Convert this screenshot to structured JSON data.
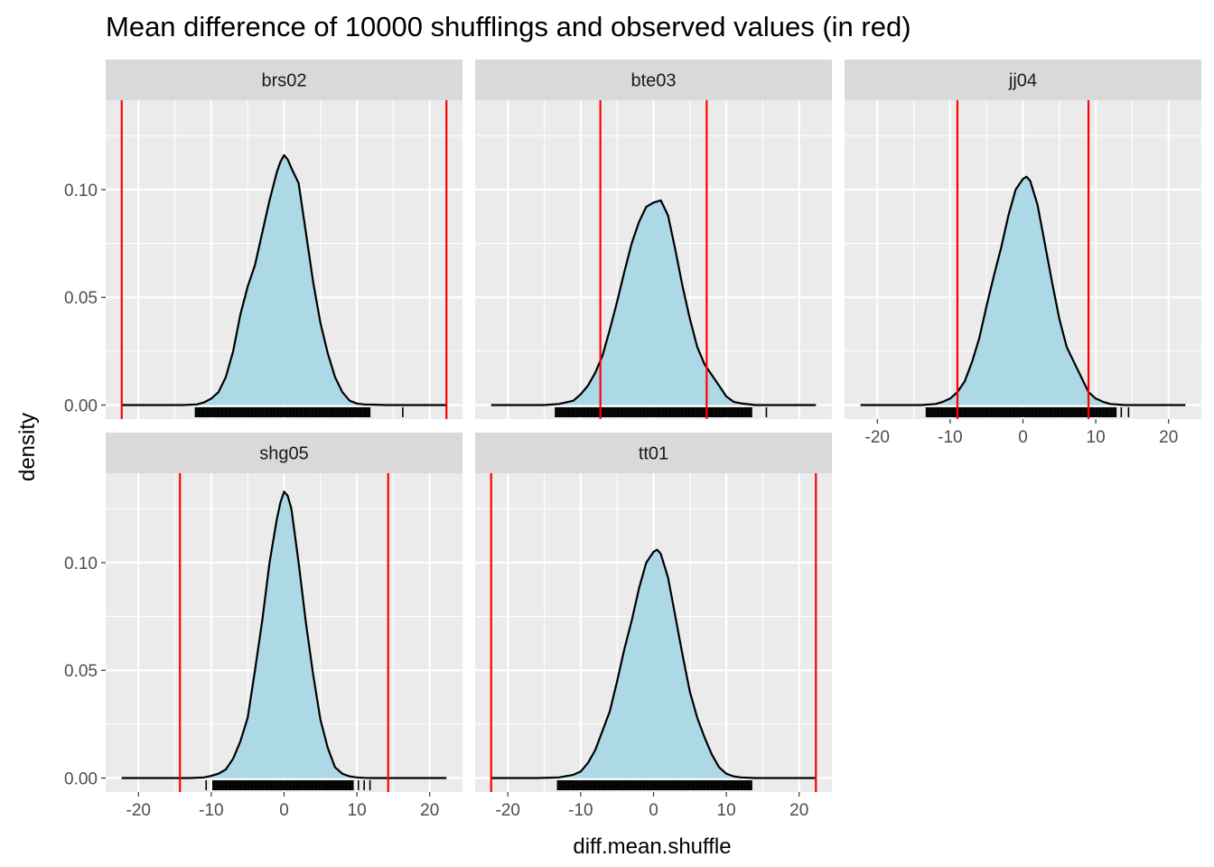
{
  "chart_data": {
    "type": "facet-density",
    "title": "Mean difference of 10000 shufflings and observed values (in red)",
    "xlabel": "diff.mean.shuffle",
    "ylabel": "density",
    "xlim": [
      -24.5,
      24.5
    ],
    "ylim": [
      -0.0065,
      0.1415
    ],
    "x_ticks": [
      -20,
      -10,
      0,
      10,
      20
    ],
    "x_tick_labels": [
      "-20",
      "-10",
      "0",
      "10",
      "20"
    ],
    "y_ticks": [
      0.0,
      0.05,
      0.1
    ],
    "y_tick_labels": [
      "0.00",
      "0.05",
      "0.10"
    ],
    "grid": true,
    "colors": {
      "panel_background": "#ebebeb",
      "grid": "#ffffff",
      "strip_background": "#d9d9d9",
      "density_fill": "#add8e6",
      "density_line": "#000000",
      "observed_line": "#ff0000",
      "rug": "#000000"
    },
    "facets": [
      {
        "name": "brs02",
        "observed": [
          -22.3,
          22.3
        ],
        "density_x": [
          -22.3,
          -14,
          -12,
          -11,
          -10,
          -9,
          -8,
          -7,
          -6,
          -5,
          -4,
          -3,
          -2,
          -1,
          -0.5,
          0,
          0.5,
          1,
          2,
          3,
          4,
          5,
          6,
          7,
          8,
          9,
          10,
          11,
          12,
          14,
          22.3
        ],
        "density_y": [
          0,
          0,
          0.0003,
          0.0012,
          0.003,
          0.006,
          0.013,
          0.025,
          0.042,
          0.055,
          0.065,
          0.08,
          0.095,
          0.108,
          0.113,
          0.116,
          0.114,
          0.11,
          0.103,
          0.08,
          0.057,
          0.038,
          0.024,
          0.013,
          0.006,
          0.002,
          0.0007,
          0.0003,
          0.0002,
          0,
          0
        ],
        "rug_range": [
          -12.2,
          11.8
        ],
        "rug_outliers": [
          16.3
        ]
      },
      {
        "name": "bte03",
        "observed": [
          -7.3,
          7.3
        ],
        "density_x": [
          -22.3,
          -15,
          -13,
          -11,
          -10,
          -9,
          -8,
          -7,
          -6,
          -5,
          -4,
          -3,
          -2,
          -1,
          0,
          1,
          2,
          3,
          4,
          5,
          6,
          7,
          8,
          9,
          10,
          11,
          12,
          14,
          22.3
        ],
        "density_y": [
          0,
          0,
          0.0005,
          0.002,
          0.005,
          0.009,
          0.015,
          0.023,
          0.035,
          0.048,
          0.062,
          0.075,
          0.085,
          0.092,
          0.094,
          0.095,
          0.088,
          0.072,
          0.055,
          0.04,
          0.027,
          0.019,
          0.014,
          0.009,
          0.004,
          0.0015,
          0.0008,
          0,
          0
        ],
        "rug_range": [
          -13.5,
          13.5
        ],
        "rug_outliers": [
          15.5
        ]
      },
      {
        "name": "jj04",
        "observed": [
          -9,
          9
        ],
        "density_x": [
          -22.3,
          -14,
          -12,
          -11,
          -10,
          -9,
          -8,
          -7,
          -6,
          -5,
          -4,
          -3,
          -2,
          -1,
          0,
          0.5,
          1,
          2,
          3,
          4,
          5,
          6,
          7,
          8,
          9,
          10,
          11,
          12,
          14,
          22.3
        ],
        "density_y": [
          0,
          0,
          0.0005,
          0.0015,
          0.003,
          0.006,
          0.011,
          0.02,
          0.031,
          0.046,
          0.06,
          0.073,
          0.088,
          0.1,
          0.105,
          0.106,
          0.104,
          0.093,
          0.075,
          0.057,
          0.04,
          0.027,
          0.02,
          0.013,
          0.006,
          0.003,
          0.0015,
          0.0005,
          0,
          0
        ],
        "rug_range": [
          -13.3,
          12.8
        ],
        "rug_outliers": [
          13.5,
          14.5
        ]
      },
      {
        "name": "shg05",
        "observed": [
          -14.3,
          14.3
        ],
        "density_x": [
          -22.3,
          -13,
          -11,
          -10,
          -9,
          -8,
          -7,
          -6,
          -5,
          -4,
          -3,
          -2,
          -1,
          -0.5,
          0,
          0.5,
          1,
          2,
          3,
          4,
          5,
          6,
          7,
          8,
          9,
          10,
          11,
          12,
          22.3
        ],
        "density_y": [
          0,
          0,
          0.0003,
          0.001,
          0.002,
          0.004,
          0.009,
          0.017,
          0.028,
          0.05,
          0.073,
          0.1,
          0.12,
          0.128,
          0.133,
          0.131,
          0.125,
          0.1,
          0.072,
          0.048,
          0.027,
          0.014,
          0.005,
          0.002,
          0.0008,
          0.0003,
          0.0001,
          0,
          0
        ],
        "rug_range": [
          -9.8,
          9.5
        ],
        "rug_outliers": [
          -10.7,
          10.2,
          11,
          11.8
        ]
      },
      {
        "name": "tt01",
        "observed": [
          -22.3,
          22.3
        ],
        "density_x": [
          -22.3,
          -16,
          -13,
          -11,
          -10,
          -9,
          -8,
          -7,
          -6,
          -5,
          -4,
          -3,
          -2,
          -1,
          0,
          0.5,
          1,
          2,
          3,
          4,
          5,
          6,
          7,
          8,
          9,
          10,
          11,
          12,
          14,
          22.3
        ],
        "density_y": [
          0,
          0,
          0.0003,
          0.0015,
          0.003,
          0.007,
          0.013,
          0.022,
          0.031,
          0.045,
          0.06,
          0.073,
          0.088,
          0.1,
          0.105,
          0.106,
          0.104,
          0.093,
          0.075,
          0.057,
          0.04,
          0.028,
          0.019,
          0.011,
          0.005,
          0.002,
          0.0008,
          0.0003,
          0,
          0
        ],
        "rug_range": [
          -13.2,
          13.5
        ],
        "rug_outliers": []
      }
    ]
  }
}
